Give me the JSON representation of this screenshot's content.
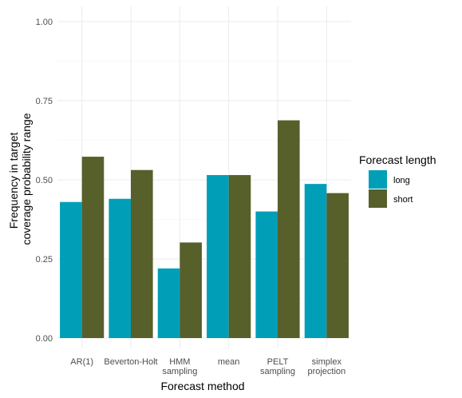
{
  "chart_data": {
    "type": "bar",
    "xlabel": "Forecast method",
    "ylabel": [
      "Frequency in target",
      "coverage probability range"
    ],
    "categories": [
      [
        "AR(1)"
      ],
      [
        "Beverton-Holt"
      ],
      [
        "HMM",
        "sampling"
      ],
      [
        "mean"
      ],
      [
        "PELT",
        "sampling"
      ],
      [
        "simplex",
        "projection"
      ]
    ],
    "series": [
      {
        "name": "long",
        "color": "#009fb7",
        "values": [
          0.43,
          0.44,
          0.22,
          0.515,
          0.4,
          0.487
        ]
      },
      {
        "name": "short",
        "color": "#575f2b",
        "values": [
          0.573,
          0.531,
          0.302,
          0.515,
          0.688,
          0.458
        ]
      }
    ],
    "ylim": [
      0,
      1
    ],
    "yticks": [
      0,
      0.25,
      0.5,
      0.75,
      1
    ],
    "ytick_labels": [
      "0.00",
      "0.25",
      "0.50",
      "0.75",
      "1.00"
    ],
    "grid": true,
    "legend": {
      "title": "Forecast length",
      "placement": "right"
    }
  }
}
